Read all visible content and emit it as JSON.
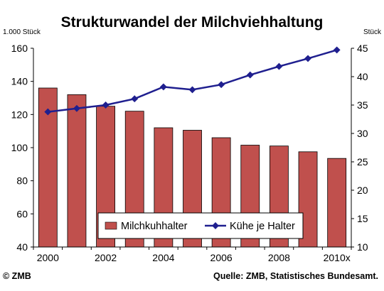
{
  "chart_data": {
    "type": "bar",
    "title": "Strukturwandel der Milchviehhaltung",
    "y_left_unit": "1.000 Stück",
    "y_right_unit": "Stück",
    "categories": [
      "2000",
      "2001",
      "2002",
      "2003",
      "2004",
      "2005",
      "2006",
      "2007",
      "2008",
      "2009",
      "2010x"
    ],
    "x_tick_labels": [
      "2000",
      "",
      "2002",
      "",
      "2004",
      "",
      "2006",
      "",
      "2008",
      "",
      "2010x"
    ],
    "ylim_left": [
      40,
      160
    ],
    "ylim_right": [
      10,
      45
    ],
    "y_left_ticks": [
      40,
      60,
      80,
      100,
      120,
      140,
      160
    ],
    "y_right_ticks": [
      10,
      15,
      20,
      25,
      30,
      35,
      40,
      45
    ],
    "grid": false,
    "legend_position": "bottom-right",
    "series": [
      {
        "name": "Milchkuhhalter",
        "type": "bar",
        "axis": "left",
        "color": "#c0504d",
        "values": [
          136,
          132,
          125,
          122,
          112,
          110.5,
          106,
          101.5,
          101,
          97.5,
          93.5
        ]
      },
      {
        "name": "Kühe je Halter",
        "type": "line",
        "axis": "right",
        "color": "#1f1f8f",
        "values": [
          33.8,
          34.4,
          35.0,
          36.1,
          38.2,
          37.7,
          38.6,
          40.3,
          41.8,
          43.2,
          44.7
        ]
      }
    ],
    "footer_left": "© ZMB",
    "footer_right": "Quelle: ZMB, Statistisches Bundesamt."
  }
}
